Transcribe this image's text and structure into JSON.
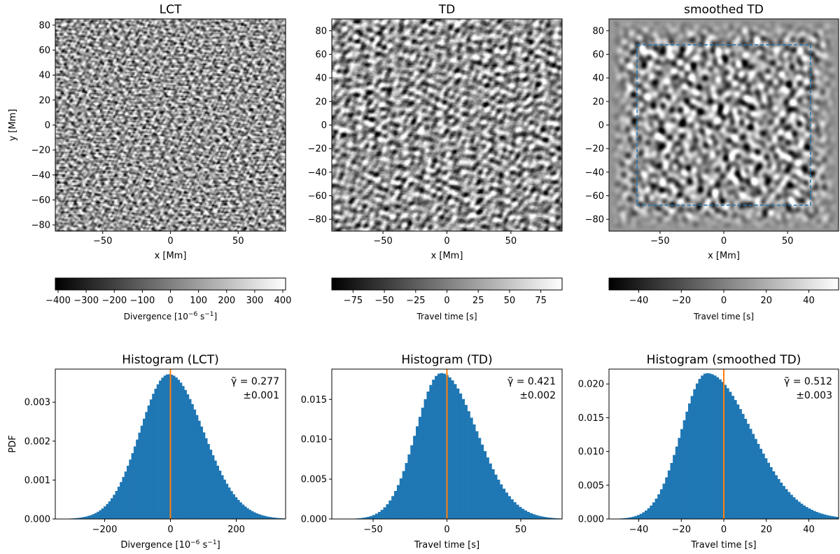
{
  "colors": {
    "hist_fill": "#1f77b4",
    "median_line": "#ff7f0e",
    "box_dash": "#1f77b4"
  },
  "chart_data": [
    {
      "type": "heatmap",
      "id": "lct",
      "title": "LCT",
      "xlabel": "x [Mm]",
      "ylabel": "y [Mm]",
      "xlim": [
        -85,
        85
      ],
      "ylim": [
        -85,
        85
      ],
      "xticks": [
        -50,
        0,
        50
      ],
      "yticks": [
        80,
        60,
        40,
        20,
        0,
        -20,
        -40,
        -60,
        -80
      ],
      "cell_scale": 10,
      "colormap": "gray",
      "colorbar": {
        "label_main": "Divergence [10",
        "label_exp1": "−6",
        "label_mid": " s",
        "label_exp2": "−1",
        "label_end": "]",
        "range": [
          -410,
          410
        ],
        "ticks": [
          -400,
          -300,
          -200,
          -100,
          0,
          100,
          200,
          300,
          400
        ]
      }
    },
    {
      "type": "heatmap",
      "id": "td",
      "title": "TD",
      "xlabel": "x [Mm]",
      "ylabel": "",
      "xlim": [
        -90,
        90
      ],
      "ylim": [
        -90,
        90
      ],
      "xticks": [
        -50,
        0,
        50
      ],
      "yticks": [
        80,
        60,
        40,
        20,
        0,
        -20,
        -40,
        -60,
        -80
      ],
      "cell_scale": 18,
      "colormap": "gray",
      "colorbar": {
        "label_main": "Travel time [s]",
        "range": [
          -92,
          92
        ],
        "ticks": [
          -75,
          -50,
          -25,
          0,
          25,
          50,
          75
        ]
      }
    },
    {
      "type": "heatmap",
      "id": "smoothed-td",
      "title": "smoothed TD",
      "xlabel": "x [Mm]",
      "ylabel": "",
      "xlim": [
        -90,
        90
      ],
      "ylim": [
        -90,
        90
      ],
      "xticks": [
        -50,
        0,
        50
      ],
      "yticks": [
        80,
        60,
        40,
        20,
        0,
        -20,
        -40,
        -60,
        -80
      ],
      "cell_scale": 22,
      "colormap": "gray",
      "box": {
        "x": [
          -68,
          68
        ],
        "y": [
          -68,
          68
        ]
      },
      "colorbar": {
        "label_main": "Travel time [s]",
        "range": [
          -54,
          54
        ],
        "ticks": [
          -40,
          -20,
          0,
          20,
          40
        ]
      }
    },
    {
      "type": "bar",
      "id": "hist-lct",
      "title": "Histogram (LCT)",
      "xlabel_main": "Divergence [10",
      "xlabel_exp1": "−6",
      "xlabel_mid": " s",
      "xlabel_exp2": "−1",
      "xlabel_end": "]",
      "ylabel": "PDF",
      "xlim": [
        -350,
        350
      ],
      "ylim": [
        0,
        0.00385
      ],
      "xticks": [
        -200,
        0,
        200
      ],
      "yticks": [
        0,
        0.001,
        0.002,
        0.003
      ],
      "ytick_labels": [
        "0.000",
        "0.001",
        "0.002",
        "0.003"
      ],
      "bins": 100,
      "mode": -5,
      "sigma_left": 88,
      "sigma_right": 105,
      "peak": 0.00372,
      "median": 0,
      "gamma_text": "γ̃ = 0.277",
      "gamma_err": "±0.001"
    },
    {
      "type": "bar",
      "id": "hist-td",
      "title": "Histogram (TD)",
      "xlabel": "Travel time [s]",
      "ylabel": "",
      "xlim": [
        -78,
        78
      ],
      "ylim": [
        0,
        0.0188
      ],
      "xticks": [
        -50,
        0,
        50
      ],
      "yticks": [
        0,
        0.005,
        0.01,
        0.015
      ],
      "ytick_labels": [
        "0.000",
        "0.005",
        "0.010",
        "0.015"
      ],
      "bins": 85,
      "mode": -4,
      "sigma_left": 17,
      "sigma_right": 24,
      "peak": 0.0183,
      "median": 0,
      "gamma_text": "γ̃ = 0.421",
      "gamma_err": "±0.002"
    },
    {
      "type": "bar",
      "id": "hist-smoothed-td",
      "title": "Histogram (smoothed TD)",
      "xlabel": "Travel time [s]",
      "ylabel": "",
      "xlim": [
        -54,
        54
      ],
      "ylim": [
        0,
        0.0222
      ],
      "xticks": [
        -40,
        -20,
        0,
        20,
        40
      ],
      "yticks": [
        0,
        0.005,
        0.01,
        0.015,
        0.02
      ],
      "ytick_labels": [
        "0.000",
        "0.005",
        "0.010",
        "0.015",
        "0.020"
      ],
      "bins": 90,
      "mode": -8,
      "sigma_left": 12,
      "sigma_right": 21,
      "peak": 0.0216,
      "median": 0,
      "gamma_text": "γ̃ = 0.512",
      "gamma_err": "±0.003"
    }
  ]
}
